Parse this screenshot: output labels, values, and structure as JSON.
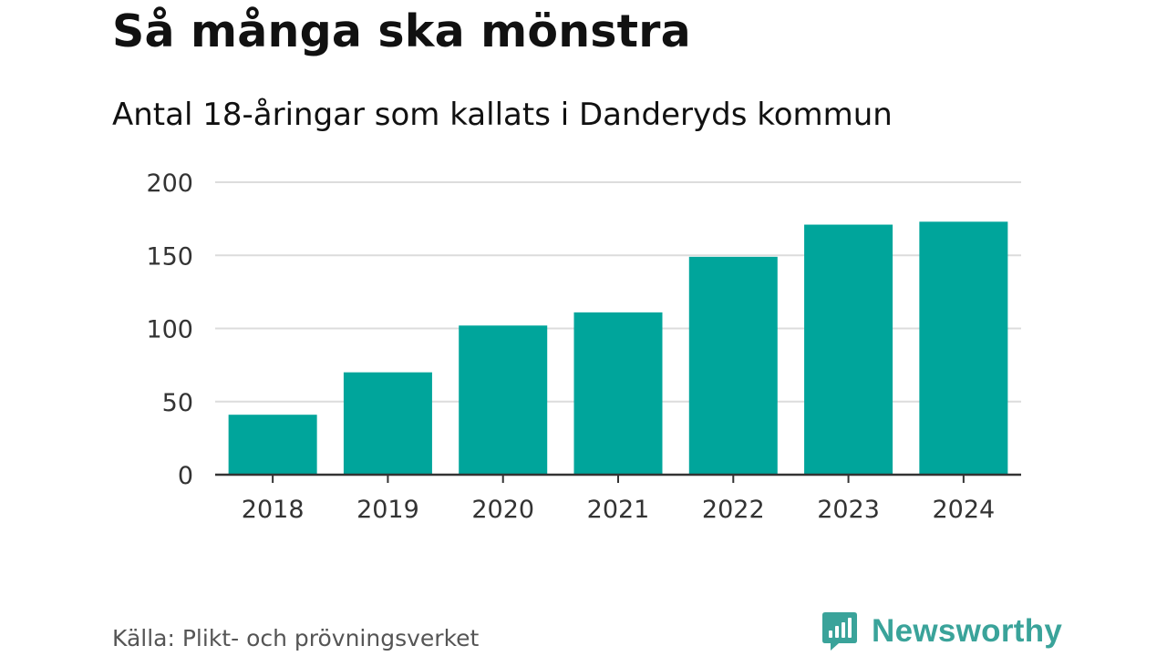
{
  "header": {
    "title": "Så många ska mönstra",
    "subtitle": "Antal 18-åringar som kallats i Danderyds kommun"
  },
  "footer": {
    "source": "Källa: Plikt- och prövningsverket",
    "brand": "Newsworthy",
    "brand_color": "#3aa39a"
  },
  "chart_data": {
    "type": "bar",
    "title": "Så många ska mönstra",
    "subtitle": "Antal 18-åringar som kallats i Danderyds kommun",
    "categories": [
      "2018",
      "2019",
      "2020",
      "2021",
      "2022",
      "2023",
      "2024"
    ],
    "values": [
      41,
      70,
      102,
      111,
      149,
      171,
      173
    ],
    "ylim": [
      0,
      200
    ],
    "yticks": [
      0,
      50,
      100,
      150,
      200
    ],
    "xlabel": "",
    "ylabel": "",
    "grid": true,
    "legend": "none",
    "bar_color": "#00a59b"
  }
}
